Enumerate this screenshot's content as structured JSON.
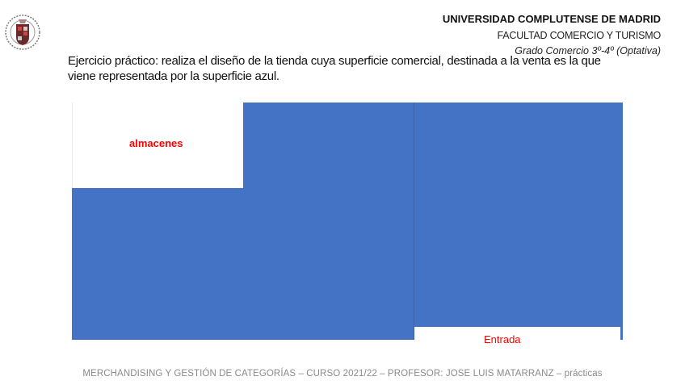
{
  "header": {
    "university": "UNIVERSIDAD COMPLUTENSE DE MADRID",
    "faculty": "FACULTAD COMERCIO Y TURISMO",
    "degree": "Grado Comercio 3º-4º (Optativa)",
    "logo": "UCM seal"
  },
  "task": "Ejercicio práctico: realiza el diseño de la tienda cuya superficie comercial, destinada a la venta es la que viene representada por la superficie azul.",
  "floorplan": {
    "sales_area_color": "#4472c4",
    "label_color": "#ff0000",
    "storage_label": "almacenes",
    "entrance_label": "Entrada"
  },
  "footer": "MERCHANDISING Y GESTIÓN DE CATEGORÍAS – CURSO 2021/22 – PROFESOR: JOSE LUIS MATARRANZ – prácticas"
}
